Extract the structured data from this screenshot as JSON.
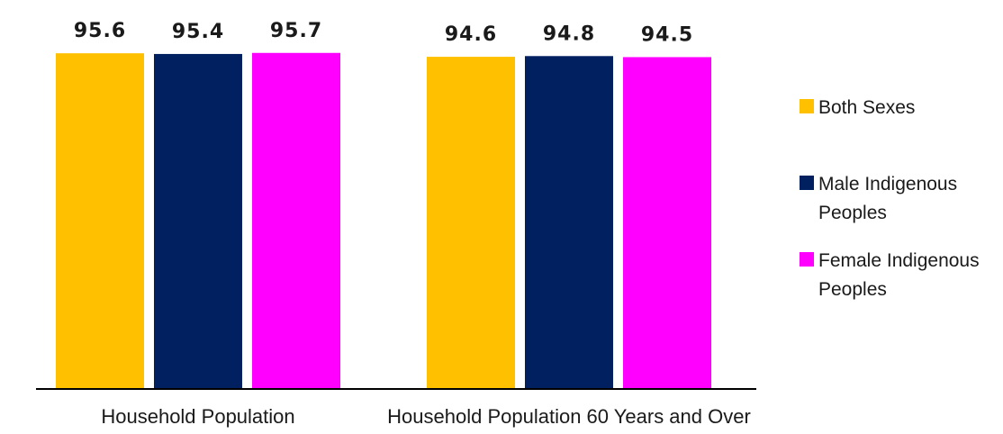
{
  "chart_data": {
    "type": "bar",
    "categories": [
      "Household Population",
      "Household Population 60 Years and Over"
    ],
    "series": [
      {
        "name": "Both Sexes",
        "values": [
          95.6,
          94.6
        ],
        "color": "#FFC000"
      },
      {
        "name": "Male Indigenous Peoples",
        "legend_lines": [
          "Male Indigenous",
          "Peoples"
        ],
        "values": [
          95.4,
          94.8
        ],
        "color": "#002060"
      },
      {
        "name": "Female Indigenous Peoples",
        "legend_lines": [
          "Female Indigenous",
          "Peoples"
        ],
        "values": [
          95.7,
          94.5
        ],
        "color": "#FF00FF"
      }
    ],
    "value_labels": [
      [
        "95.6",
        "94.6"
      ],
      [
        "95.4",
        "94.8"
      ],
      [
        "95.7",
        "94.5"
      ]
    ],
    "ylim": [
      0,
      100
    ],
    "grid": false,
    "legend_position": "right"
  }
}
